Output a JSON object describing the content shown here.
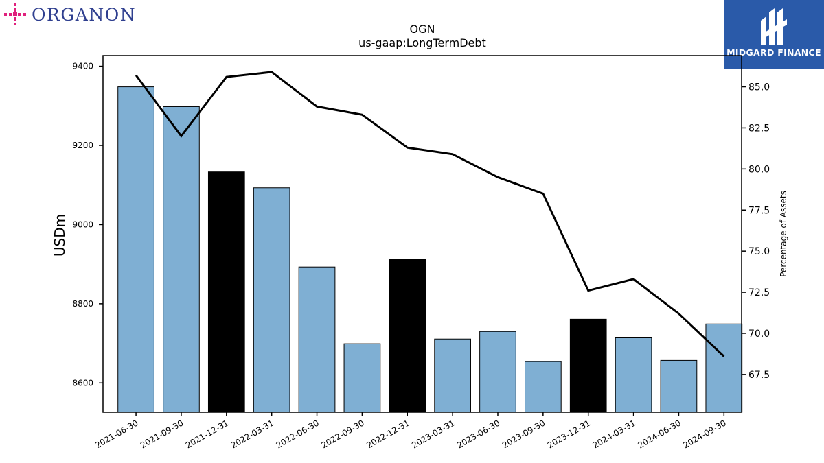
{
  "brand": {
    "left_logo_text": "ORGANON",
    "right_logo_text": "MIDGARD FINANCE"
  },
  "colors": {
    "bar_default": "#7fafd3",
    "bar_highlight": "#000000",
    "line": "#000000",
    "organon_accent": "#e0207d",
    "organon_text": "#2f3f8f",
    "midgard_bg": "#2a5aa9"
  },
  "chart_data": {
    "type": "bar",
    "title": "OGN",
    "subtitle": "us-gaap:LongTermDebt",
    "ylabel": "USDm",
    "y2label": "Percentage of Assets",
    "categories": [
      "2021-06-30",
      "2021-09-30",
      "2021-12-31",
      "2022-03-31",
      "2022-06-30",
      "2022-09-30",
      "2022-12-31",
      "2023-03-31",
      "2023-06-30",
      "2023-09-30",
      "2023-12-31",
      "2024-03-31",
      "2024-06-30",
      "2024-09-30"
    ],
    "values": [
      9348,
      9298,
      9133,
      9093,
      8893,
      8699,
      8913,
      8711,
      8730,
      8654,
      8761,
      8714,
      8657,
      8749
    ],
    "highlight": [
      false,
      false,
      true,
      false,
      false,
      false,
      true,
      false,
      false,
      false,
      true,
      false,
      false,
      false
    ],
    "ylim": [
      8526,
      9427
    ],
    "yticks": [
      8600,
      8800,
      9000,
      9200,
      9400
    ],
    "line_series": {
      "name": "Percentage of Assets",
      "values": [
        85.7,
        82.0,
        85.6,
        85.9,
        83.8,
        83.3,
        81.3,
        80.9,
        79.5,
        78.5,
        72.6,
        73.3,
        71.2,
        68.6
      ]
    },
    "y2lim": [
      65.2,
      86.9
    ],
    "y2ticks": [
      67.5,
      70.0,
      72.5,
      75.0,
      77.5,
      80.0,
      82.5,
      85.0
    ],
    "grid": false
  }
}
